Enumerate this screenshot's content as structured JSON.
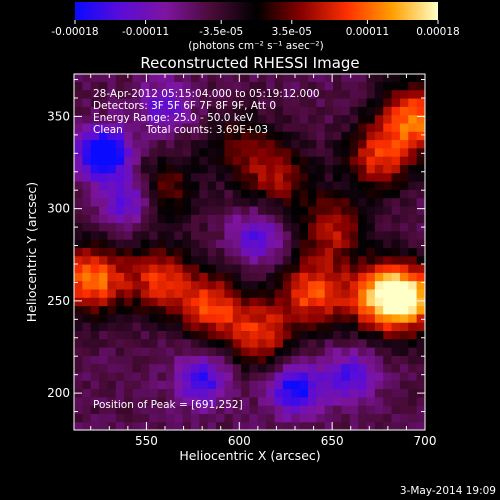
{
  "colorbar": {
    "tick_labels": [
      "-0.00018",
      "-0.00011",
      "-3.5e-05",
      "3.5e-05",
      "0.00011",
      "0.00018"
    ],
    "tick_values": [
      -0.00018,
      -0.00011,
      -3.5e-05,
      3.5e-05,
      0.00011,
      0.00018
    ],
    "range": [
      -0.00018,
      0.00018
    ],
    "units_label": "(photons cm⁻² s⁻¹ asec⁻²)",
    "colormap": [
      "#0a0aff",
      "#5a0cd8",
      "#7e14a0",
      "#4a0b38",
      "#000000",
      "#8a0000",
      "#ff3000",
      "#ffa000",
      "#ffffc8"
    ]
  },
  "chart_data": {
    "type": "heatmap",
    "title": "Reconstructed RHESSI Image",
    "xlabel": "Heliocentric X (arcsec)",
    "ylabel": "Heliocentric Y (arcsec)",
    "xlim": [
      511,
      700
    ],
    "ylim": [
      180,
      373
    ],
    "xticks": [
      550,
      600,
      650,
      700
    ],
    "yticks": [
      200,
      250,
      300,
      350
    ],
    "annotations": {
      "time_range": "28-Apr-2012 05:15:04.000 to 05:19:12.000",
      "detectors": "Detectors: 3F 5F 6F 7F 8F 9F, Att 0",
      "energy_range": "Energy Range: 25.0 - 50.0 keV",
      "method": "Clean",
      "total_counts": "Total counts: 3.69E+03",
      "peak": "Position of Peak = [691,252]"
    },
    "peak_position": [
      691,
      252
    ],
    "bright_sources": [
      {
        "x": 520,
        "y": 262,
        "level": 0.95
      },
      {
        "x": 557,
        "y": 262,
        "level": 0.7
      },
      {
        "x": 585,
        "y": 248,
        "level": 0.75
      },
      {
        "x": 612,
        "y": 232,
        "level": 0.7
      },
      {
        "x": 640,
        "y": 255,
        "level": 0.8
      },
      {
        "x": 676,
        "y": 252,
        "level": 0.85
      },
      {
        "x": 691,
        "y": 252,
        "level": 1.0
      },
      {
        "x": 695,
        "y": 350,
        "level": 0.9
      },
      {
        "x": 675,
        "y": 328,
        "level": 0.7
      },
      {
        "x": 620,
        "y": 318,
        "level": 0.55
      },
      {
        "x": 650,
        "y": 290,
        "level": 0.6
      },
      {
        "x": 560,
        "y": 312,
        "level": 0.45
      },
      {
        "x": 600,
        "y": 335,
        "level": 0.4
      }
    ],
    "dark_sources": [
      {
        "x": 527,
        "y": 330,
        "level": -0.95
      },
      {
        "x": 540,
        "y": 305,
        "level": -0.55
      },
      {
        "x": 580,
        "y": 208,
        "level": -0.6
      },
      {
        "x": 630,
        "y": 203,
        "level": -0.75
      },
      {
        "x": 610,
        "y": 285,
        "level": -0.5
      },
      {
        "x": 560,
        "y": 355,
        "level": -0.45
      },
      {
        "x": 660,
        "y": 210,
        "level": -0.5
      }
    ]
  },
  "footer": {
    "date": "3-May-2014 19:09"
  }
}
